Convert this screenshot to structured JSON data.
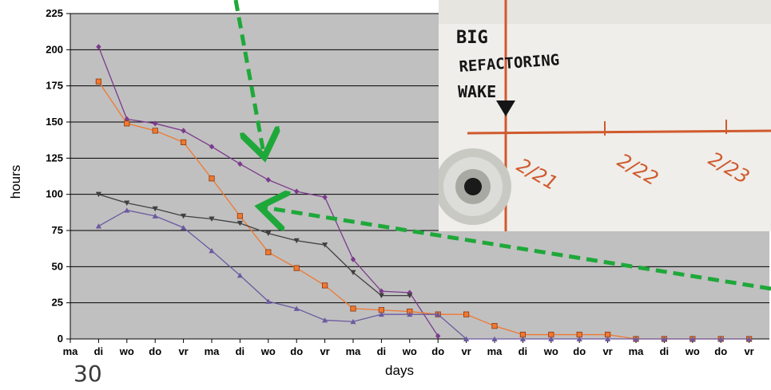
{
  "page": {
    "slide_number": "30"
  },
  "photo": {
    "caption_line1": "BIG",
    "caption_line2": "REFACTORING",
    "caption_line3": "WAKE",
    "date_labels": [
      "2/21",
      "2/22",
      "2/23"
    ]
  },
  "colors": {
    "plot_background": "#c0c0c0",
    "gridline": "#000000",
    "arrow": "#1fa83a",
    "series_purple": "#7b3b8c",
    "series_orange": "#f07830",
    "series_gray": "#404040",
    "series_violet": "#6b5aa0"
  },
  "chart_data": {
    "type": "line",
    "xlabel": "days",
    "ylabel": "hours",
    "ylim": [
      0,
      225
    ],
    "yticks": [
      0,
      25,
      50,
      75,
      100,
      125,
      150,
      175,
      200,
      225
    ],
    "categories": [
      "ma",
      "di",
      "wo",
      "do",
      "vr",
      "ma",
      "di",
      "wo",
      "do",
      "vr",
      "ma",
      "di",
      "wo",
      "do",
      "vr",
      "ma",
      "di",
      "wo",
      "do",
      "vr",
      "ma",
      "di",
      "wo",
      "do",
      "vr"
    ],
    "grid": true,
    "series": [
      {
        "marker": "diamond",
        "color": "#7b3b8c",
        "values": [
          null,
          202,
          152,
          149,
          144,
          133,
          121,
          110,
          102,
          98,
          55,
          33,
          32,
          2,
          null,
          null,
          null,
          null,
          null,
          null,
          null,
          null,
          null,
          null,
          null
        ]
      },
      {
        "marker": "square",
        "color": "#f07830",
        "values": [
          null,
          178,
          149,
          144,
          136,
          111,
          85,
          60,
          49,
          37,
          21,
          20,
          19,
          17,
          17,
          9,
          3,
          3,
          3,
          3,
          0,
          0,
          0,
          0,
          0
        ]
      },
      {
        "marker": "triangle-down",
        "color": "#404040",
        "values": [
          null,
          100,
          94,
          90,
          85,
          83,
          80,
          73,
          68,
          65,
          46,
          30,
          30,
          null,
          null,
          null,
          null,
          null,
          null,
          null,
          null,
          null,
          null,
          null,
          null
        ]
      },
      {
        "marker": "triangle-up",
        "color": "#6b5aa0",
        "values": [
          null,
          78,
          89,
          85,
          77,
          61,
          44,
          26,
          21,
          13,
          12,
          17,
          17,
          17,
          0,
          0,
          0,
          0,
          0,
          0,
          0,
          0,
          0,
          0,
          0
        ]
      }
    ]
  }
}
